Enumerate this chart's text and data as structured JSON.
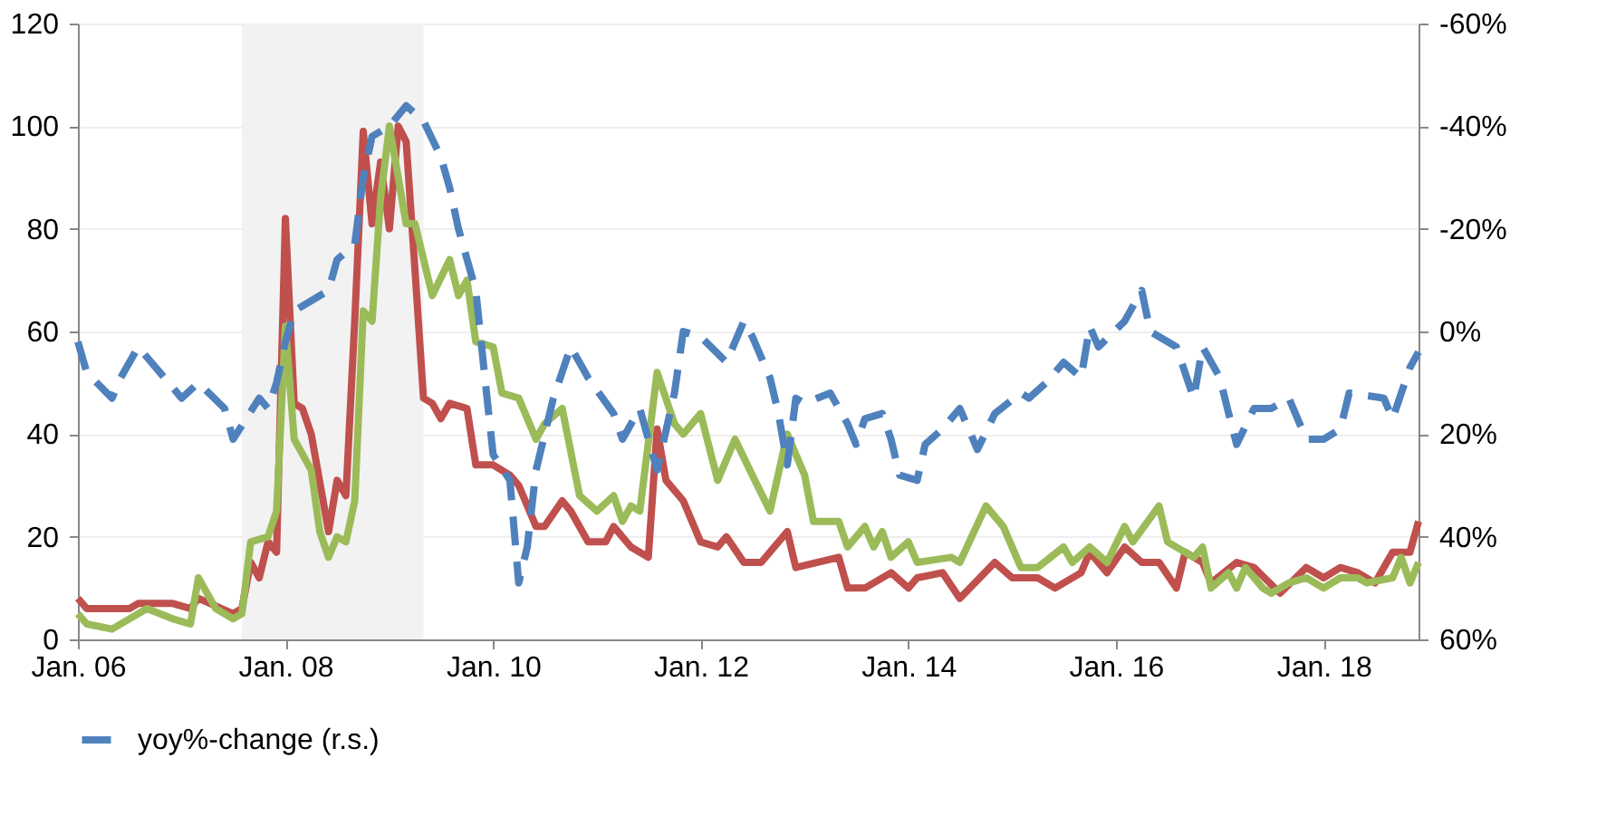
{
  "chart_data": {
    "type": "line",
    "xlim": [
      "2006-01",
      "2018-12"
    ],
    "xticks": [
      {
        "value": "2006-01",
        "label": "Jan. 06"
      },
      {
        "value": "2008-01",
        "label": "Jan. 08"
      },
      {
        "value": "2010-01",
        "label": "Jan. 10"
      },
      {
        "value": "2012-01",
        "label": "Jan. 12"
      },
      {
        "value": "2014-01",
        "label": "Jan. 14"
      },
      {
        "value": "2016-01",
        "label": "Jan. 16"
      },
      {
        "value": "2018-01",
        "label": "Jan. 18"
      }
    ],
    "ylim": [
      0,
      120
    ],
    "yticks": [
      0,
      20,
      40,
      60,
      80,
      100,
      120
    ],
    "y2lim": [
      60,
      -60
    ],
    "y2ticks": [
      {
        "value": -60,
        "label": "-60%"
      },
      {
        "value": -40,
        "label": "-40%"
      },
      {
        "value": -20,
        "label": "-20%"
      },
      {
        "value": 0,
        "label": "0%"
      },
      {
        "value": 20,
        "label": "20%"
      },
      {
        "value": 40,
        "label": "40%"
      },
      {
        "value": 60,
        "label": "60%"
      }
    ],
    "grid": "y",
    "legend": "bottom",
    "bands": [
      {
        "axis": "x",
        "from": "2007-08",
        "to": "2009-05",
        "color": "#f2f2f2"
      }
    ],
    "series": [
      {
        "color": "#c0504d",
        "x": [
          "2006-01",
          "2006-02",
          "2006-07",
          "2006-08",
          "2006-12",
          "2007-02",
          "2007-03",
          "2007-07",
          "2007-08",
          "2007-09",
          "2007-10",
          "2007-11",
          "2007-12",
          "2008-01",
          "2008-02",
          "2008-03",
          "2008-04",
          "2008-06",
          "2008-07",
          "2008-08",
          "2008-09",
          "2008-10",
          "2008-11",
          "2008-12",
          "2009-01",
          "2009-02",
          "2009-03",
          "2009-04",
          "2009-05",
          "2009-06",
          "2009-07",
          "2009-08",
          "2009-10",
          "2009-11",
          "2010-01",
          "2010-03",
          "2010-04",
          "2010-06",
          "2010-07",
          "2010-09",
          "2010-10",
          "2010-12",
          "2011-02",
          "2011-03",
          "2011-05",
          "2011-07",
          "2011-08",
          "2011-09",
          "2011-11",
          "2012-01",
          "2012-03",
          "2012-04",
          "2012-06",
          "2012-08",
          "2012-11",
          "2012-12",
          "2013-05",
          "2013-06",
          "2013-08",
          "2013-11",
          "2014-01",
          "2014-02",
          "2014-05",
          "2014-07",
          "2014-11",
          "2015-01",
          "2015-04",
          "2015-06",
          "2015-09",
          "2015-10",
          "2015-12",
          "2016-02",
          "2016-04",
          "2016-06",
          "2016-08",
          "2016-09",
          "2016-11",
          "2016-12",
          "2017-03",
          "2017-05",
          "2017-08",
          "2017-11",
          "2018-01",
          "2018-03",
          "2018-05",
          "2018-07",
          "2018-09",
          "2018-11",
          "2018-12"
        ],
        "values": [
          8,
          6,
          6,
          7,
          7,
          6,
          8,
          5,
          6,
          15,
          12,
          19,
          17,
          82,
          46,
          45,
          40,
          21,
          31,
          28,
          62,
          99,
          81,
          93,
          80,
          100,
          97,
          72,
          47,
          46,
          43,
          46,
          45,
          34,
          34,
          32,
          30,
          22,
          22,
          27,
          25,
          19,
          19,
          22,
          18,
          16,
          41,
          31,
          27,
          19,
          18,
          20,
          15,
          15,
          21,
          14,
          16,
          10,
          10,
          13,
          10,
          12,
          13,
          8,
          15,
          12,
          12,
          10,
          13,
          17,
          13,
          18,
          15,
          15,
          10,
          17,
          15,
          11,
          15,
          14,
          9,
          14,
          12,
          14,
          13,
          11,
          17,
          17,
          23
        ]
      },
      {
        "color": "#9bbb59",
        "x": [
          "2006-01",
          "2006-02",
          "2006-05",
          "2006-07",
          "2006-09",
          "2006-12",
          "2007-02",
          "2007-03",
          "2007-05",
          "2007-07",
          "2007-08",
          "2007-09",
          "2007-11",
          "2007-12",
          "2008-01",
          "2008-02",
          "2008-04",
          "2008-05",
          "2008-06",
          "2008-07",
          "2008-08",
          "2008-09",
          "2008-10",
          "2008-11",
          "2008-12",
          "2009-01",
          "2009-03",
          "2009-04",
          "2009-06",
          "2009-08",
          "2009-09",
          "2009-10",
          "2009-11",
          "2010-01",
          "2010-02",
          "2010-04",
          "2010-06",
          "2010-07",
          "2010-09",
          "2010-11",
          "2011-01",
          "2011-03",
          "2011-04",
          "2011-05",
          "2011-06",
          "2011-08",
          "2011-10",
          "2011-11",
          "2012-01",
          "2012-03",
          "2012-05",
          "2012-07",
          "2012-09",
          "2012-11",
          "2013-01",
          "2013-02",
          "2013-05",
          "2013-06",
          "2013-08",
          "2013-09",
          "2013-10",
          "2013-11",
          "2014-01",
          "2014-02",
          "2014-06",
          "2014-07",
          "2014-10",
          "2014-12",
          "2015-02",
          "2015-04",
          "2015-07",
          "2015-08",
          "2015-10",
          "2015-12",
          "2016-02",
          "2016-03",
          "2016-06",
          "2016-07",
          "2016-10",
          "2016-11",
          "2016-12",
          "2017-02",
          "2017-03",
          "2017-04",
          "2017-06",
          "2017-07",
          "2017-09",
          "2017-11",
          "2018-01",
          "2018-03",
          "2018-05",
          "2018-06",
          "2018-09",
          "2018-10",
          "2018-11",
          "2018-12"
        ],
        "values": [
          5,
          3,
          2,
          4,
          6,
          4,
          3,
          12,
          6,
          4,
          5,
          19,
          20,
          25,
          61,
          39,
          33,
          21,
          16,
          20,
          19,
          27,
          64,
          62,
          86,
          100,
          81,
          81,
          67,
          74,
          67,
          70,
          58,
          57,
          48,
          47,
          39,
          42,
          45,
          28,
          25,
          28,
          23,
          26,
          25,
          52,
          42,
          40,
          44,
          31,
          39,
          32,
          25,
          40,
          32,
          23,
          23,
          18,
          22,
          18,
          21,
          16,
          19,
          15,
          16,
          15,
          26,
          22,
          14,
          14,
          18,
          15,
          18,
          15,
          22,
          19,
          26,
          19,
          16,
          18,
          10,
          13,
          10,
          14,
          10,
          9,
          11,
          12,
          10,
          12,
          12,
          11,
          12,
          16,
          11,
          15
        ]
      },
      {
        "name": "yoy%-change (r.s.)",
        "color": "#4f81bd",
        "axis": "y2",
        "line_style": "dashed",
        "x": [
          "2006-01",
          "2006-02",
          "2006-05",
          "2006-06",
          "2006-08",
          "2006-11",
          "2007-01",
          "2007-03",
          "2007-06",
          "2007-07",
          "2007-10",
          "2007-11",
          "2007-12",
          "2008-01",
          "2008-02",
          "2008-06",
          "2008-07",
          "2008-09",
          "2008-10",
          "2008-11",
          "2009-01",
          "2009-03",
          "2009-05",
          "2009-07",
          "2009-08",
          "2009-09",
          "2009-11",
          "2009-12",
          "2010-01",
          "2010-03",
          "2010-04",
          "2010-05",
          "2010-06",
          "2010-08",
          "2010-10",
          "2010-12",
          "2011-03",
          "2011-04",
          "2011-06",
          "2011-07",
          "2011-08",
          "2011-10",
          "2011-11",
          "2012-01",
          "2012-04",
          "2012-06",
          "2012-07",
          "2012-09",
          "2012-10",
          "2012-11",
          "2012-12",
          "2013-01",
          "2013-04",
          "2013-06",
          "2013-07",
          "2013-08",
          "2013-10",
          "2013-11",
          "2013-12",
          "2014-02",
          "2014-03",
          "2014-05",
          "2014-07",
          "2014-08",
          "2014-09",
          "2014-11",
          "2015-02",
          "2015-03",
          "2015-05",
          "2015-07",
          "2015-09",
          "2015-10",
          "2015-11",
          "2016-02",
          "2016-04",
          "2016-05",
          "2016-08",
          "2016-10",
          "2016-11",
          "2017-01",
          "2017-02",
          "2017-03",
          "2017-05",
          "2017-07",
          "2017-09",
          "2017-11",
          "2018-01",
          "2018-03",
          "2018-04",
          "2018-08",
          "2018-09",
          "2018-11",
          "2018-12"
        ],
        "values": [
          2,
          8,
          13,
          9,
          3,
          9,
          13,
          10,
          15,
          21,
          13,
          15,
          10,
          2,
          -4,
          -8,
          -14,
          -17,
          -30,
          -38,
          -40,
          -44,
          -41,
          -34,
          -28,
          -20,
          -8,
          8,
          24,
          29,
          49,
          42,
          27,
          13,
          3,
          9,
          16,
          21,
          15,
          21,
          27,
          12,
          0,
          1,
          6,
          -2,
          1,
          9,
          16,
          26,
          13,
          14,
          12,
          18,
          22,
          17,
          16,
          21,
          28,
          29,
          22,
          19,
          15,
          19,
          23,
          16,
          12,
          13,
          10,
          6,
          9,
          -1,
          3,
          -2,
          -8,
          0,
          3,
          13,
          3,
          9,
          16,
          22,
          15,
          15,
          13,
          21,
          21,
          19,
          12,
          13,
          17,
          7,
          4
        ]
      }
    ]
  }
}
